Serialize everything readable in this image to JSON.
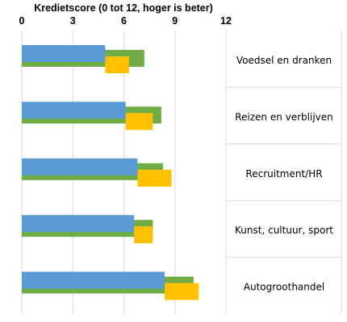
{
  "chart_data": {
    "type": "bar",
    "orientation": "horizontal",
    "title": "",
    "xlabel": "Kredietscore (0 tot 12, hoger is beter)",
    "ylabel": "",
    "xlim": [
      0,
      12
    ],
    "x_ticks": [
      0,
      3,
      6,
      9,
      12
    ],
    "x_axis_position": "top",
    "grid": "vertical",
    "legend": "none",
    "categories": [
      "Voedsel en dranken",
      "Reizen en verblijven",
      "Recruitment/HR",
      "Kunst, cultuur, sport",
      "Autogroothandel"
    ],
    "series": [
      {
        "color": "#5b9bd5",
        "values": [
          4.9,
          6.1,
          6.8,
          6.6,
          8.4
        ]
      },
      {
        "color": "#70ad47",
        "values": [
          7.2,
          8.2,
          8.3,
          7.7,
          10.1
        ]
      },
      {
        "color": "#ffc000",
        "values": [
          6.3,
          7.7,
          8.8,
          7.7,
          10.4
        ]
      }
    ]
  }
}
